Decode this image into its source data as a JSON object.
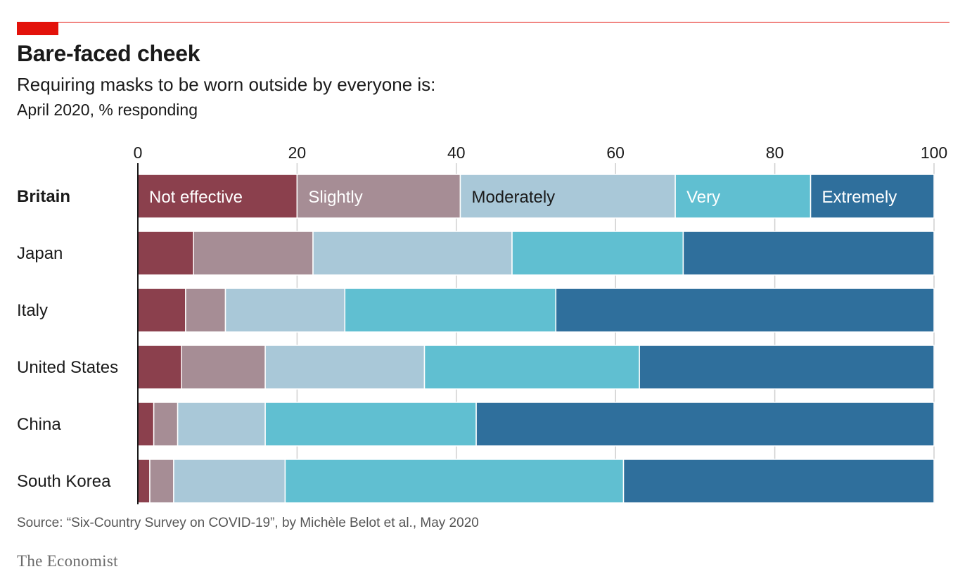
{
  "header": {
    "title": "Bare-faced cheek",
    "subtitle": "Requiring masks to be worn outside by everyone is:",
    "unit": "April 2020, % responding"
  },
  "footer": {
    "source": "Source: “Six-Country Survey on COVID-19”, by Michèle Belot et al., May 2020",
    "brand": "The Economist"
  },
  "colors": {
    "accent": "#e3120b",
    "segments": [
      "#8b404d",
      "#a68d95",
      "#a9c8d8",
      "#60bfd1",
      "#2f6f9c"
    ],
    "label_text": [
      "#ffffff",
      "#ffffff",
      "#1a1a1a",
      "#ffffff",
      "#ffffff"
    ]
  },
  "chart_data": {
    "type": "bar",
    "stacked": true,
    "orientation": "horizontal",
    "categories": [
      "Britain",
      "Japan",
      "Italy",
      "United States",
      "China",
      "South Korea"
    ],
    "emphasized_category": "Britain",
    "series": [
      {
        "name": "Not effective",
        "values": [
          20,
          7,
          6,
          5.5,
          2,
          1.5
        ]
      },
      {
        "name": "Slightly",
        "values": [
          20.5,
          15,
          5,
          10.5,
          3,
          3
        ]
      },
      {
        "name": "Moderately",
        "values": [
          27,
          25,
          15,
          20,
          11,
          14
        ]
      },
      {
        "name": "Very",
        "values": [
          17,
          21.5,
          26.5,
          27,
          26.5,
          42.5
        ]
      },
      {
        "name": "Extremely",
        "values": [
          15.5,
          31.5,
          47.5,
          37,
          57.5,
          39
        ]
      }
    ],
    "xticks": [
      "0",
      "20",
      "40",
      "60",
      "80",
      "100"
    ],
    "xlim": [
      0,
      100
    ],
    "legend_placement": "inline in first bar",
    "grid": true
  }
}
